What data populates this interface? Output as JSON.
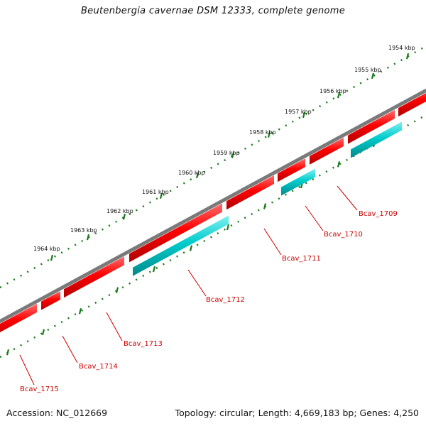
{
  "title": "Beutenbergia cavernae DSM 12333, complete genome",
  "footer": {
    "accession": "Accession: NC_012669",
    "topology": "Topology: circular; Length: 4,669,183 bp; Genes: 4,250"
  },
  "colors": {
    "backbone": "#7a7a7a",
    "forward_gene": "#ff0000",
    "reverse_gene": "#00cccc",
    "ticks": "#1a7a1a",
    "label": "#cc0000"
  },
  "kbp_labels": [
    "1954 kbp",
    "1955 kbp",
    "1956 kbp",
    "1957 kbp",
    "1958 kbp",
    "1959 kbp",
    "1960 kbp",
    "1961 kbp",
    "1962 kbp",
    "1963 kbp",
    "1964 kbp"
  ],
  "gene_labels": [
    "Bcav_1709",
    "Bcav_1710",
    "Bcav_1711",
    "Bcav_1712",
    "Bcav_1713",
    "Bcav_1714",
    "Bcav_1715"
  ]
}
